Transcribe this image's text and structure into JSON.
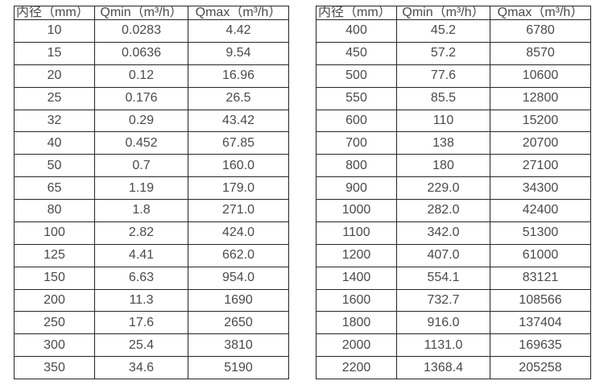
{
  "page": {
    "background_color": "#ffffff",
    "text_color": "#4a4a4a",
    "border_color": "#262626",
    "description_units": "m³/h"
  },
  "tables": [
    {
      "name": "flow-range-table-small-diameters",
      "headers": [
        "内径（mm）",
        "Qmin（m³/h）",
        "Qmax（m³/h）"
      ],
      "rows": [
        [
          "10",
          "0.0283",
          "4.42"
        ],
        [
          "15",
          "0.0636",
          "9.54"
        ],
        [
          "20",
          "0.12",
          "16.96"
        ],
        [
          "25",
          "0.176",
          "26.5"
        ],
        [
          "32",
          "0.29",
          "43.42"
        ],
        [
          "40",
          "0.452",
          "67.85"
        ],
        [
          "50",
          "0.7",
          "160.0"
        ],
        [
          "65",
          "1.19",
          "179.0"
        ],
        [
          "80",
          "1.8",
          "271.0"
        ],
        [
          "100",
          "2.82",
          "424.0"
        ],
        [
          "125",
          "4.41",
          "662.0"
        ],
        [
          "150",
          "6.63",
          "954.0"
        ],
        [
          "200",
          "11.3",
          "1690"
        ],
        [
          "250",
          "17.6",
          "2650"
        ],
        [
          "300",
          "25.4",
          "3810"
        ],
        [
          "350",
          "34.6",
          "5190"
        ]
      ]
    },
    {
      "name": "flow-range-table-large-diameters",
      "headers": [
        "内径（mm）",
        "Qmin（m³/h）",
        "Qmax（m³/h）"
      ],
      "rows": [
        [
          "400",
          "45.2",
          "6780"
        ],
        [
          "450",
          "57.2",
          "8570"
        ],
        [
          "500",
          "77.6",
          "10600"
        ],
        [
          "550",
          "85.5",
          "12800"
        ],
        [
          "600",
          "110",
          "15200"
        ],
        [
          "700",
          "138",
          "20700"
        ],
        [
          "800",
          "180",
          "27100"
        ],
        [
          "900",
          "229.0",
          "34300"
        ],
        [
          "1000",
          "282.0",
          "42400"
        ],
        [
          "1100",
          "342.0",
          "51300"
        ],
        [
          "1200",
          "407.0",
          "61000"
        ],
        [
          "1400",
          "554.1",
          "83121"
        ],
        [
          "1600",
          "732.7",
          "108566"
        ],
        [
          "1800",
          "916.0",
          "137404"
        ],
        [
          "2000",
          "1131.0",
          "169635"
        ],
        [
          "2200",
          "1368.4",
          "205258"
        ]
      ]
    }
  ]
}
